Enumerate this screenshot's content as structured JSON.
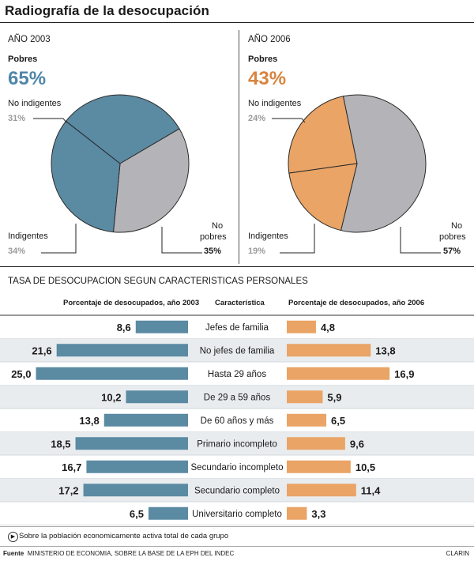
{
  "title": "Radiografía de la desocupación",
  "colors": {
    "blue": "#5b8aa3",
    "orange": "#e9a466",
    "gray": "#b4b4b8"
  },
  "pies": [
    {
      "year": "AÑO 2003",
      "pobres_label": "Pobres",
      "pobres_pct": "65%",
      "pobres_color": "#4f86a8",
      "no_ind_label": "No indigentes",
      "no_ind_pct": "31%",
      "ind_label": "Indigentes",
      "ind_pct": "34%",
      "no_pobres_label_1": "No",
      "no_pobres_label_2": "pobres",
      "no_pobres_pct": "35%"
    },
    {
      "year": "AÑO 2006",
      "pobres_label": "Pobres",
      "pobres_pct": "43%",
      "pobres_color": "#d9843e",
      "no_ind_label": "No indigentes",
      "no_ind_pct": "24%",
      "ind_label": "Indigentes",
      "ind_pct": "19%",
      "no_pobres_label_1": "No",
      "no_pobres_label_2": "pobres",
      "no_pobres_pct": "57%"
    }
  ],
  "bars_title": "TASA DE DESOCUPACION SEGUN CARACTERISTICAS PERSONALES",
  "bars_headers": {
    "left": "Porcentaje de desocupados, año 2003",
    "center": "Característica",
    "right": "Porcentaje de desocupados, año 2006"
  },
  "footnote": "Sobre la población economicamente activa total de cada grupo",
  "source_label": "Fuente",
  "source_text": "MINISTERIO DE ECONOMIA, SOBRE LA BASE DE LA EPH DEL INDEC",
  "brand": "CLARIN",
  "chart_data": [
    {
      "type": "pie",
      "title": "AÑO 2003",
      "slices": [
        {
          "label": "No indigentes",
          "value": 31
        },
        {
          "label": "Indigentes",
          "value": 34
        },
        {
          "label": "No pobres",
          "value": 35
        }
      ]
    },
    {
      "type": "pie",
      "title": "AÑO 2006",
      "slices": [
        {
          "label": "No indigentes",
          "value": 24
        },
        {
          "label": "Indigentes",
          "value": 19
        },
        {
          "label": "No pobres",
          "value": 57
        }
      ]
    },
    {
      "type": "bar",
      "title": "TASA DE DESOCUPACION SEGUN CARACTERISTICAS PERSONALES",
      "categories": [
        "Jefes de familia",
        "No jefes de familia",
        "Hasta 29 años",
        "De 29 a 59 años",
        "De 60 años y más",
        "Primario incompleto",
        "Secundario incompleto",
        "Secundario completo",
        "Universitario completo"
      ],
      "series": [
        {
          "name": "Porcentaje de desocupados, año 2003",
          "values": [
            8.6,
            21.6,
            25.0,
            10.2,
            13.8,
            18.5,
            16.7,
            17.2,
            6.5
          ],
          "labels": [
            "8,6",
            "21,6",
            "25,0",
            "10,2",
            "13,8",
            "18,5",
            "16,7",
            "17,2",
            "6,5"
          ]
        },
        {
          "name": "Porcentaje de desocupados, año 2006",
          "values": [
            4.8,
            13.8,
            16.9,
            5.9,
            6.5,
            9.6,
            10.5,
            11.4,
            3.3
          ],
          "labels": [
            "4,8",
            "13,8",
            "16,9",
            "5,9",
            "6,5",
            "9,6",
            "10,5",
            "11,4",
            "3,3"
          ]
        }
      ]
    }
  ]
}
